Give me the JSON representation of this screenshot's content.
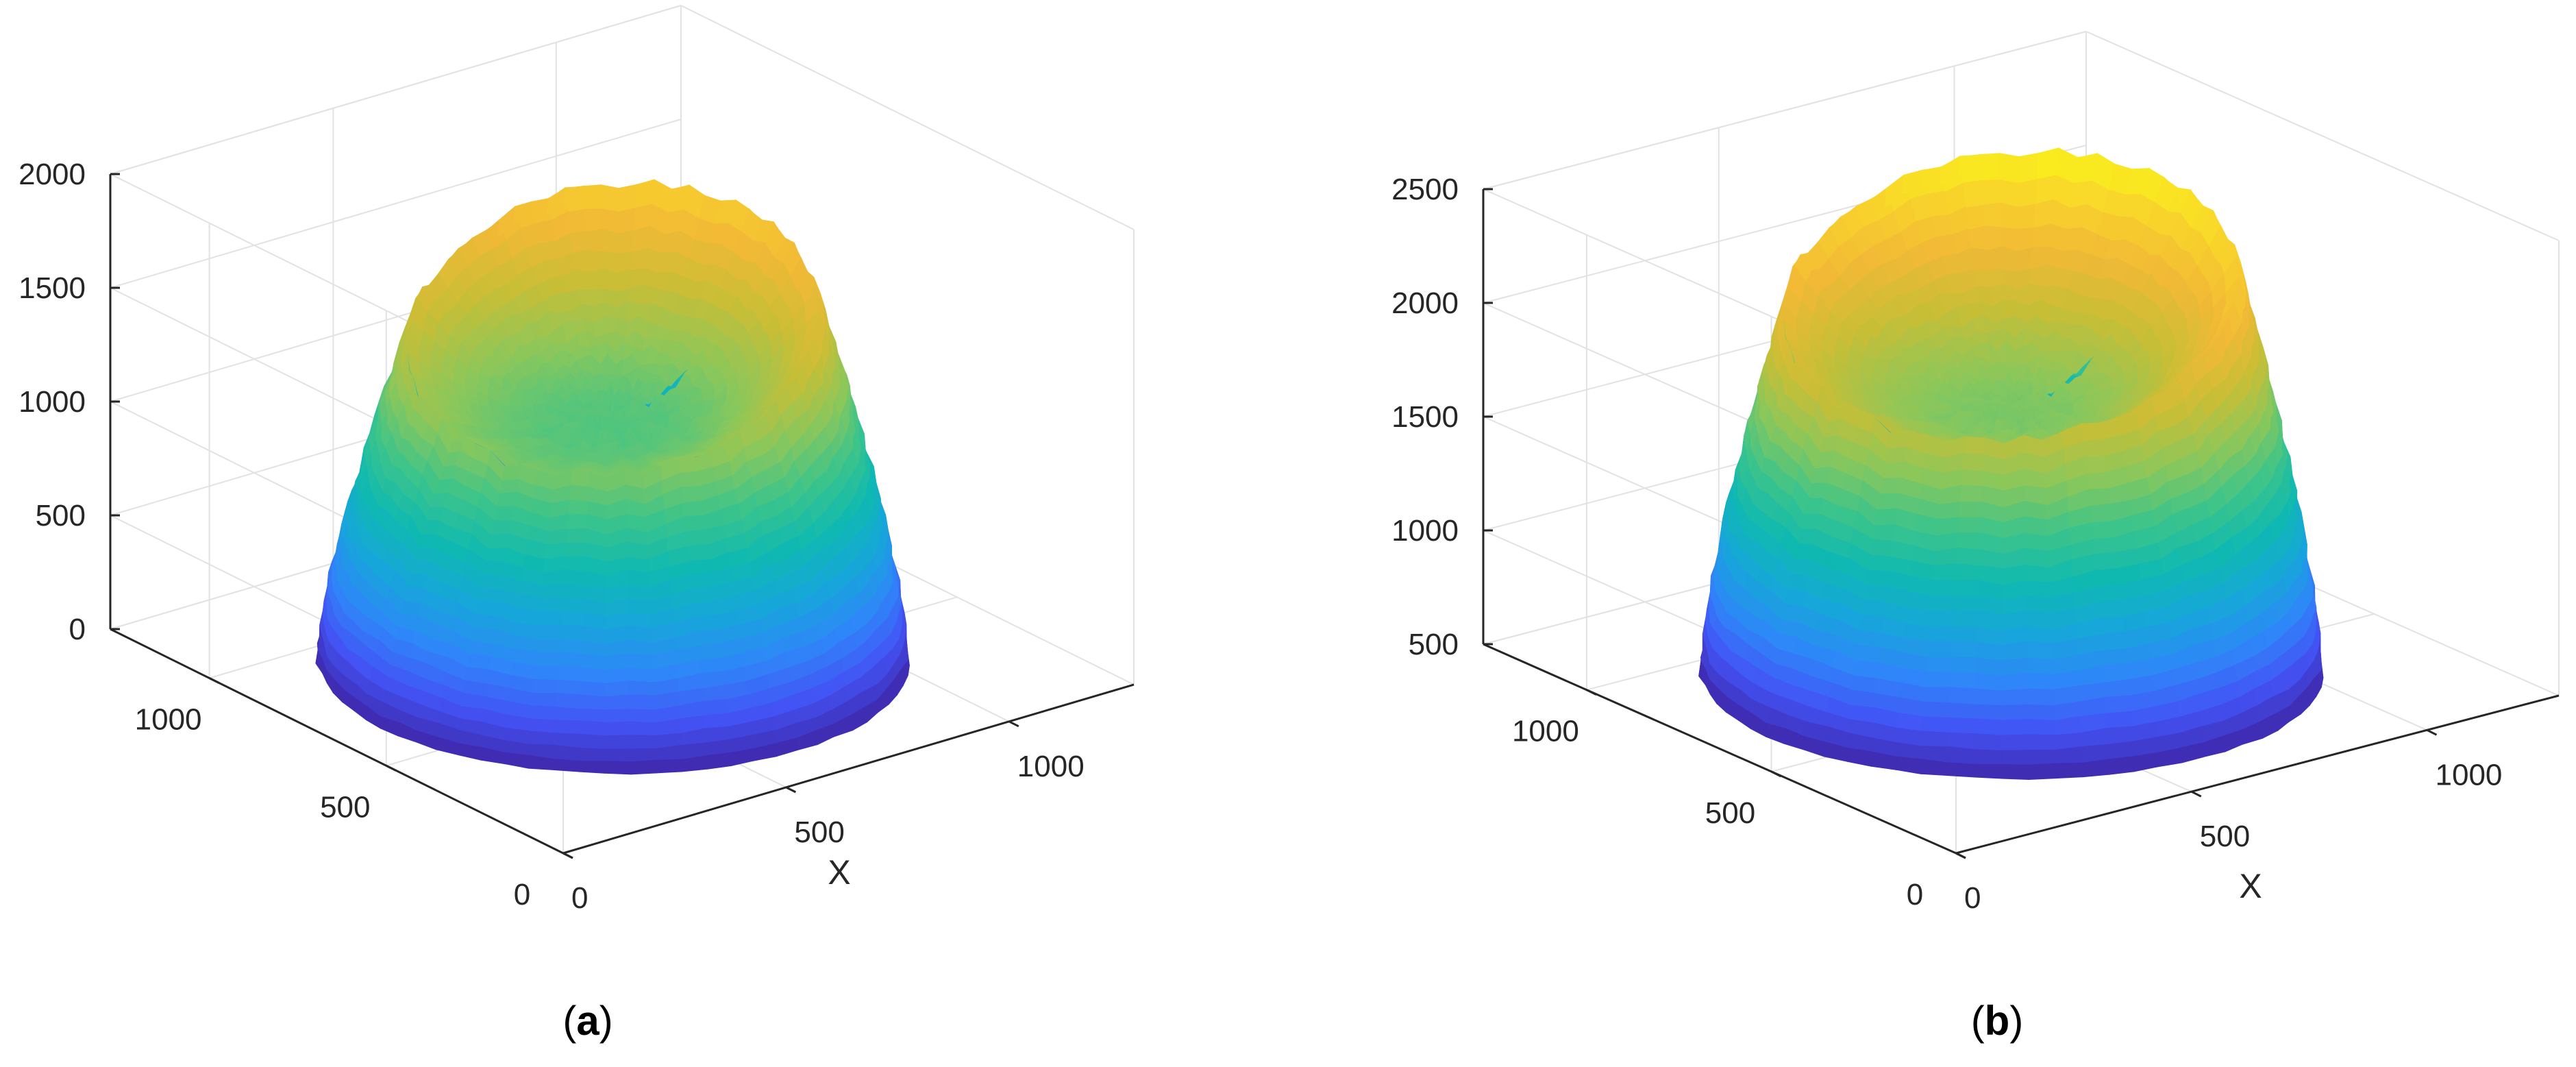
{
  "colors": {
    "colormap": [
      "#3e26a8",
      "#4353f5",
      "#2f86f9",
      "#17a6da",
      "#0fb9b1",
      "#3dc48a",
      "#8bc75b",
      "#c8be36",
      "#f2b936",
      "#f9d72a",
      "#f9fb15"
    ],
    "grid": "#e2e2e2",
    "axis": "#262626"
  },
  "chart_data": [
    {
      "type": "surface",
      "panel": "(a)",
      "caption_open": "(",
      "caption_letter": "a",
      "caption_close": ")",
      "title": "",
      "xlabel": "X",
      "ylabel": "",
      "zlabel": "",
      "xlim": [
        0,
        1280
      ],
      "ylim": [
        0,
        1280
      ],
      "zlim": [
        0,
        2000
      ],
      "xticks": [
        0,
        500,
        1000
      ],
      "yticks": [
        0,
        500,
        1000
      ],
      "zticks": [
        0,
        500,
        1000,
        1500,
        2000
      ],
      "grid": true,
      "surface": {
        "center_x": 620,
        "center_y": 640,
        "base_radius": 520,
        "top_radius": 360,
        "rim_height_max": 1750,
        "rim_height_min": 1150,
        "bowl_bottom": 1050,
        "peak_azimuth_deg": 35
      }
    },
    {
      "type": "surface",
      "panel": "(b)",
      "caption_open": "(",
      "caption_letter": "b",
      "caption_close": ")",
      "title": "",
      "xlabel": "X",
      "ylabel": "",
      "zlabel": "",
      "xlim": [
        0,
        1280
      ],
      "ylim": [
        0,
        1280
      ],
      "zlim": [
        500,
        2500
      ],
      "xticks": [
        0,
        500,
        1000
      ],
      "yticks": [
        0,
        500,
        1000
      ],
      "zticks": [
        500,
        1000,
        1500,
        2000,
        2500
      ],
      "grid": true,
      "surface": {
        "center_x": 620,
        "center_y": 640,
        "base_radius": 520,
        "top_radius": 380,
        "rim_height_max": 2450,
        "rim_height_min": 1850,
        "bowl_bottom": 1650,
        "peak_azimuth_deg": 35
      }
    }
  ]
}
